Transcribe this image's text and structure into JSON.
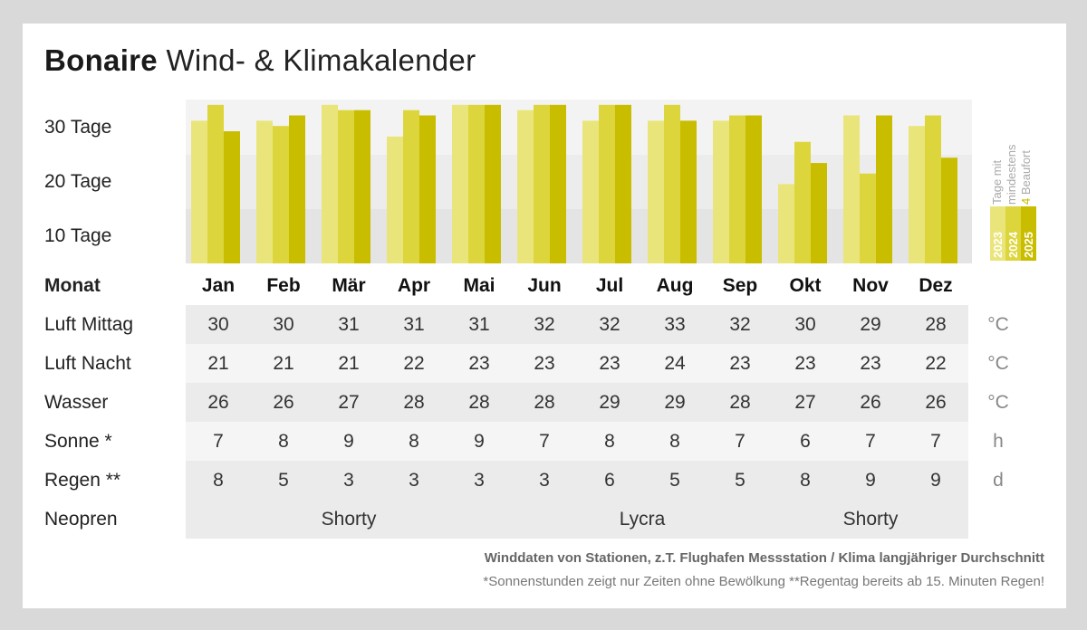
{
  "title": {
    "bold": "Bonaire",
    "rest": "Wind- & Klimakalender"
  },
  "chart_data": {
    "type": "bar",
    "title": "Tage mit mindestens 4 Beaufort",
    "ylabel_ticks": [
      "30 Tage",
      "20 Tage",
      "10 Tage"
    ],
    "categories": [
      "Jan",
      "Feb",
      "Mär",
      "Apr",
      "Mai",
      "Jun",
      "Jul",
      "Aug",
      "Sep",
      "Okt",
      "Nov",
      "Dez"
    ],
    "ylim": [
      0,
      31
    ],
    "series": [
      {
        "name": "2023",
        "color": "#eae57a",
        "values": [
          27,
          27,
          30,
          24,
          30,
          29,
          27,
          27,
          27,
          15,
          28,
          26
        ]
      },
      {
        "name": "2024",
        "color": "#ddd53c",
        "values": [
          30,
          26,
          29,
          29,
          30,
          30,
          30,
          30,
          28,
          23,
          17,
          28
        ]
      },
      {
        "name": "2025",
        "color": "#c9bd00",
        "values": [
          25,
          28,
          29,
          28,
          30,
          30,
          30,
          27,
          28,
          19,
          28,
          20
        ]
      }
    ],
    "legend": {
      "line1": "Tage mit",
      "line2": "mindestens",
      "line3_prefix": "4",
      "line3_rest": "Beaufort"
    }
  },
  "table": {
    "header_label": "Monat",
    "months": [
      "Jan",
      "Feb",
      "Mär",
      "Apr",
      "Mai",
      "Jun",
      "Jul",
      "Aug",
      "Sep",
      "Okt",
      "Nov",
      "Dez"
    ],
    "rows": [
      {
        "label": "Luft Mittag",
        "values": [
          "30",
          "30",
          "31",
          "31",
          "31",
          "32",
          "32",
          "33",
          "32",
          "30",
          "29",
          "28"
        ],
        "unit": "°C"
      },
      {
        "label": "Luft Nacht",
        "values": [
          "21",
          "21",
          "21",
          "22",
          "23",
          "23",
          "23",
          "24",
          "23",
          "23",
          "23",
          "22"
        ],
        "unit": "°C"
      },
      {
        "label": "Wasser",
        "values": [
          "26",
          "26",
          "27",
          "28",
          "28",
          "28",
          "29",
          "29",
          "28",
          "27",
          "26",
          "26"
        ],
        "unit": "°C"
      },
      {
        "label": "Sonne *",
        "values": [
          "7",
          "8",
          "9",
          "8",
          "9",
          "7",
          "8",
          "8",
          "7",
          "6",
          "7",
          "7"
        ],
        "unit": "h"
      },
      {
        "label": "Regen **",
        "values": [
          "8",
          "5",
          "3",
          "3",
          "3",
          "3",
          "6",
          "5",
          "5",
          "8",
          "9",
          "9"
        ],
        "unit": "d"
      }
    ],
    "neopren": {
      "label": "Neopren",
      "segments": [
        {
          "text": "Shorty",
          "span": 5
        },
        {
          "text": "Lycra",
          "span": 4
        },
        {
          "text": "Shorty",
          "span": 3
        }
      ]
    }
  },
  "footer": {
    "line1": "Winddaten von Stationen, z.T. Flughafen Messstation / Klima langjähriger Durchschnitt",
    "line2": "*Sonnenstunden zeigt nur Zeiten ohne Bewölkung  **Regentag bereits ab 15. Minuten Regen!"
  }
}
